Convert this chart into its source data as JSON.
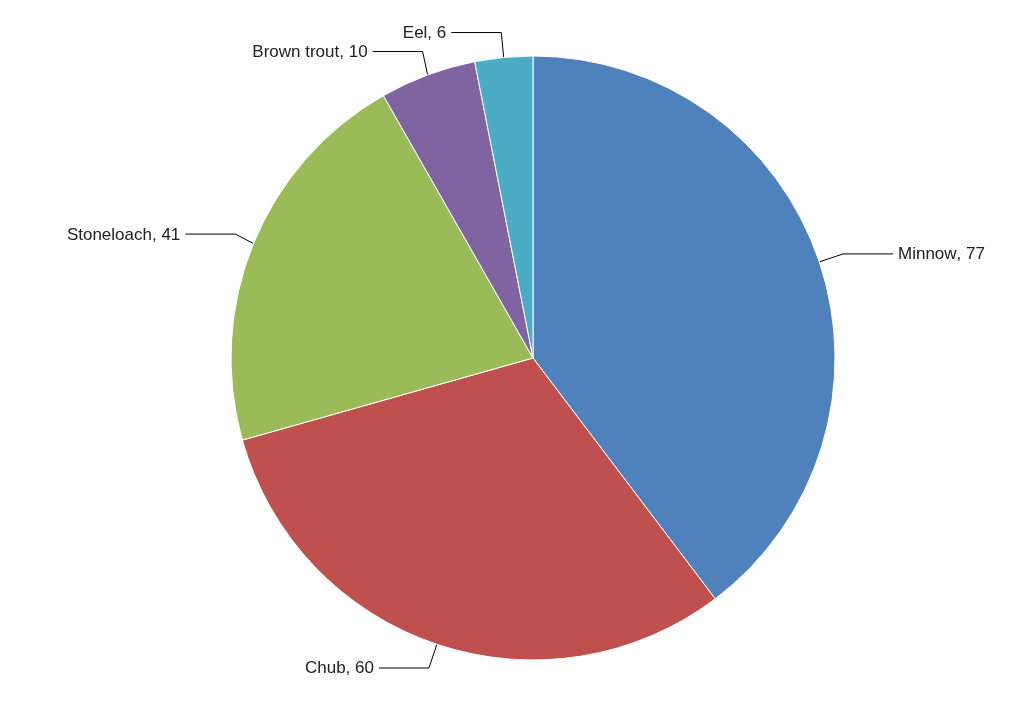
{
  "chart_data": {
    "type": "pie",
    "categories": [
      "Minnow",
      "Chub",
      "Stoneloach",
      "Brown trout",
      "Eel"
    ],
    "values": [
      77,
      60,
      41,
      10,
      6
    ],
    "value_labels": [
      ", 77",
      ", 60",
      ", 41",
      ", 10",
      ", 6"
    ],
    "colors": [
      "#4f81bd",
      "#c0504d",
      "#9bbb59",
      "#8064a2",
      "#4bacc6"
    ],
    "legend": false
  }
}
